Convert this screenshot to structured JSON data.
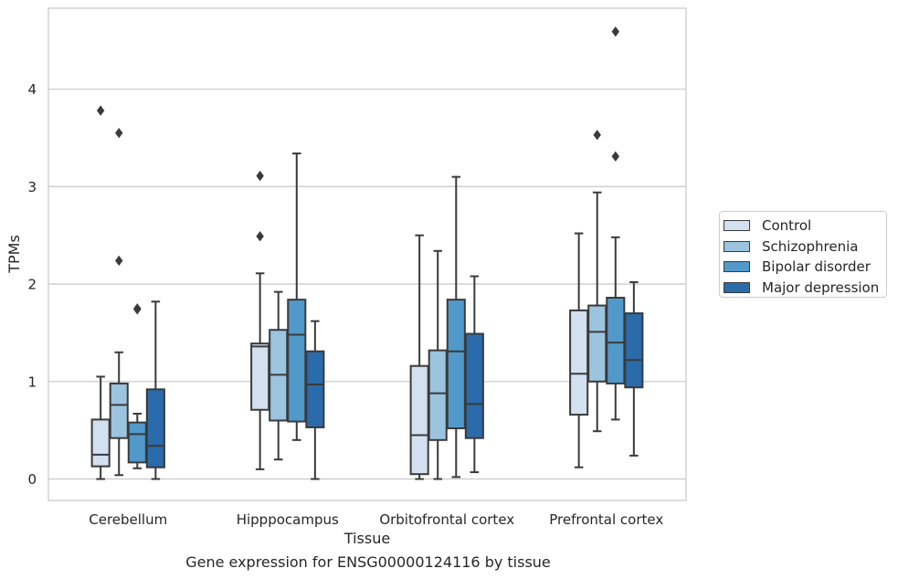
{
  "chart_data": {
    "type": "box",
    "xlabel": "Tissue",
    "ylabel": "TPMs",
    "caption": "Gene expression for ENSG00000124116 by tissue",
    "ylim": [
      -0.22,
      4.83
    ],
    "yticks": [
      0,
      1,
      2,
      3,
      4
    ],
    "grid": true,
    "legend_position": "right",
    "categories": [
      "Cerebellum",
      "Hipppocampus",
      "Orbitofrontal cortex",
      "Prefrontal cortex"
    ],
    "series": [
      {
        "name": "Control",
        "color": "#d2e0f0",
        "boxes": [
          {
            "whislo": 0.0,
            "q1": 0.13,
            "med": 0.25,
            "q3": 0.61,
            "whishi": 1.05,
            "fliers": [
              3.78
            ]
          },
          {
            "whislo": 0.1,
            "q1": 0.71,
            "med": 1.36,
            "q3": 1.39,
            "whishi": 2.11,
            "fliers": [
              2.49,
              3.11
            ]
          },
          {
            "whislo": 0.0,
            "q1": 0.05,
            "med": 0.45,
            "q3": 1.16,
            "whishi": 2.5,
            "fliers": []
          },
          {
            "whislo": 0.12,
            "q1": 0.66,
            "med": 1.08,
            "q3": 1.73,
            "whishi": 2.52,
            "fliers": []
          }
        ]
      },
      {
        "name": "Schizophrenia",
        "color": "#9bc4df",
        "boxes": [
          {
            "whislo": 0.04,
            "q1": 0.42,
            "med": 0.76,
            "q3": 0.98,
            "whishi": 1.3,
            "fliers": [
              2.24,
              3.55
            ]
          },
          {
            "whislo": 0.2,
            "q1": 0.6,
            "med": 1.07,
            "q3": 1.53,
            "whishi": 1.92,
            "fliers": []
          },
          {
            "whislo": 0.0,
            "q1": 0.4,
            "med": 0.88,
            "q3": 1.32,
            "whishi": 2.34,
            "fliers": []
          },
          {
            "whislo": 0.49,
            "q1": 1.0,
            "med": 1.51,
            "q3": 1.78,
            "whishi": 2.94,
            "fliers": [
              3.53
            ]
          }
        ]
      },
      {
        "name": "Bipolar disorder",
        "color": "#5299cb",
        "boxes": [
          {
            "whislo": 0.11,
            "q1": 0.17,
            "med": 0.46,
            "q3": 0.58,
            "whishi": 0.67,
            "fliers": [
              1.74,
              1.75
            ]
          },
          {
            "whislo": 0.4,
            "q1": 0.59,
            "med": 1.48,
            "q3": 1.84,
            "whishi": 3.34,
            "fliers": []
          },
          {
            "whislo": 0.02,
            "q1": 0.52,
            "med": 1.31,
            "q3": 1.84,
            "whishi": 3.1,
            "fliers": []
          },
          {
            "whislo": 0.61,
            "q1": 0.98,
            "med": 1.4,
            "q3": 1.86,
            "whishi": 2.48,
            "fliers": [
              3.31,
              4.59
            ]
          }
        ]
      },
      {
        "name": "Major depression",
        "color": "#2a6bab",
        "boxes": [
          {
            "whislo": 0.0,
            "q1": 0.12,
            "med": 0.34,
            "q3": 0.92,
            "whishi": 1.82,
            "fliers": []
          },
          {
            "whislo": 0.0,
            "q1": 0.53,
            "med": 0.97,
            "q3": 1.31,
            "whishi": 1.62,
            "fliers": []
          },
          {
            "whislo": 0.07,
            "q1": 0.42,
            "med": 0.77,
            "q3": 1.49,
            "whishi": 2.08,
            "fliers": []
          },
          {
            "whislo": 0.24,
            "q1": 0.94,
            "med": 1.22,
            "q3": 1.7,
            "whishi": 2.02,
            "fliers": []
          }
        ]
      }
    ]
  }
}
